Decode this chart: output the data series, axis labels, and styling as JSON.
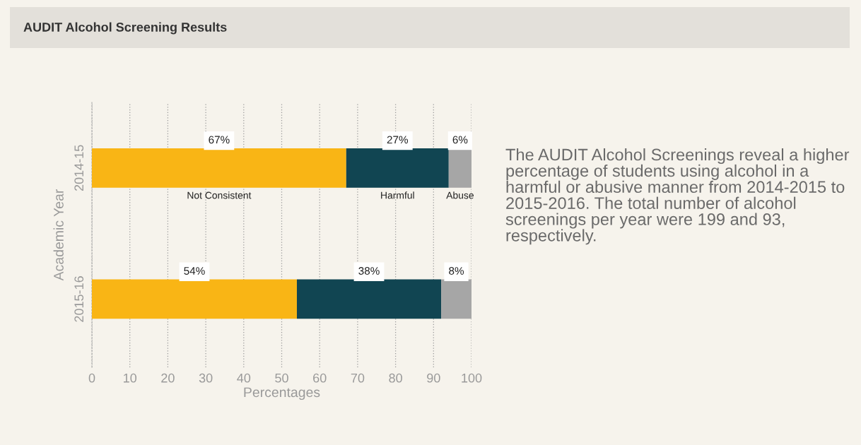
{
  "chart_data": {
    "type": "bar",
    "orientation": "horizontal",
    "stacked": true,
    "title": "AUDIT Alcohol Screening Results",
    "xlabel": "Percentages",
    "ylabel": "Academic Year",
    "categories": [
      "2014-15",
      "2015-16"
    ],
    "series": [
      {
        "name": "Not Consistent",
        "color": "#f9b515",
        "values": [
          67,
          54
        ],
        "value_labels": [
          "67%",
          "54%"
        ]
      },
      {
        "name": "Harmful",
        "color": "#114552",
        "values": [
          27,
          38
        ],
        "value_labels": [
          "27%",
          "38%"
        ]
      },
      {
        "name": "Abuse",
        "color": "#a6a6a6",
        "values": [
          6,
          8
        ],
        "value_labels": [
          "6%",
          "8%"
        ]
      }
    ],
    "xlim": [
      0,
      100
    ],
    "xticks": [
      0,
      10,
      20,
      30,
      40,
      50,
      60,
      70,
      80,
      90,
      100
    ],
    "grid": "x",
    "legend": false,
    "annotations": [
      "The AUDIT Alcohol Screenings reveal a higher percentage of students using alcohol in a harmful or abusive manner from 2014-2015 to 2015-2016. The total number of alcohol screenings per year were 199 and 93, respectively."
    ]
  }
}
